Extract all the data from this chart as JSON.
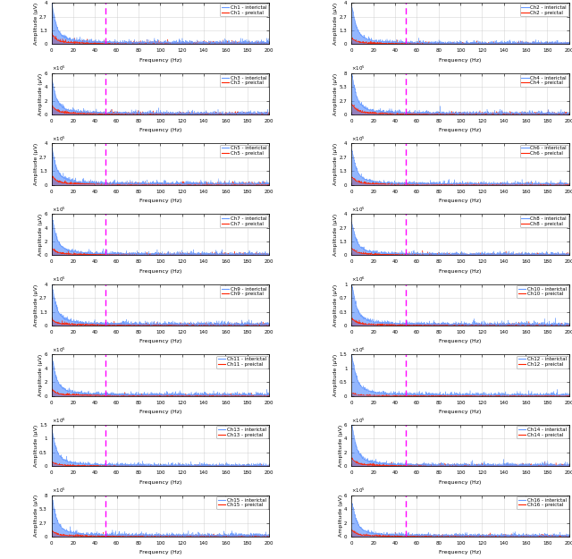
{
  "n_rows": 8,
  "n_cols": 2,
  "channels_left": [
    1,
    3,
    5,
    7,
    9,
    11,
    13,
    15
  ],
  "channels_right": [
    2,
    4,
    6,
    8,
    10,
    12,
    14,
    16
  ],
  "dashed_line_x": 50,
  "xlim": [
    0,
    200
  ],
  "xlabel": "Frequency (Hz)",
  "ylabel": "Amplitude (μV)",
  "interictal_color": "#6699FF",
  "preictal_color": "#FF2200",
  "dashed_color": "#FF00FF",
  "ylim_scales": {
    "1": [
      0,
      400000.0
    ],
    "2": [
      0,
      400000.0
    ],
    "3": [
      0,
      600000.0
    ],
    "4": [
      0,
      800000.0
    ],
    "5": [
      0,
      400000.0
    ],
    "6": [
      0,
      400000.0
    ],
    "7": [
      0,
      600000.0
    ],
    "8": [
      0,
      400000.0
    ],
    "9": [
      0,
      400000.0
    ],
    "10": [
      0,
      1000000.0
    ],
    "11": [
      0,
      600000.0
    ],
    "12": [
      0,
      1500000.0
    ],
    "13": [
      0,
      1500000.0
    ],
    "14": [
      0,
      600000.0
    ],
    "15": [
      0,
      800000.0
    ],
    "16": [
      0,
      600000.0
    ]
  },
  "channel_params": {
    "1": {
      "peak_i": 380000.0,
      "peak_p": 90000.0,
      "noise_i": 8000,
      "noise_p": 6000
    },
    "2": {
      "peak_i": 350000.0,
      "peak_p": 50000.0,
      "noise_i": 6000,
      "noise_p": 4000
    },
    "3": {
      "peak_i": 500000.0,
      "peak_p": 120000.0,
      "noise_i": 10000,
      "noise_p": 8000
    },
    "4": {
      "peak_i": 750000.0,
      "peak_p": 180000.0,
      "noise_i": 14000,
      "noise_p": 10000
    },
    "5": {
      "peak_i": 350000.0,
      "peak_p": 80000.0,
      "noise_i": 7000,
      "noise_p": 5000
    },
    "6": {
      "peak_i": 320000.0,
      "peak_p": 70000.0,
      "noise_i": 6000,
      "noise_p": 4000
    },
    "7": {
      "peak_i": 550000.0,
      "peak_p": 90000.0,
      "noise_i": 10000,
      "noise_p": 7000
    },
    "8": {
      "peak_i": 300000.0,
      "peak_p": 60000.0,
      "noise_i": 6000,
      "noise_p": 4000
    },
    "9": {
      "peak_i": 380000.0,
      "peak_p": 50000.0,
      "noise_i": 8000,
      "noise_p": 5000
    },
    "10": {
      "peak_i": 950000.0,
      "peak_p": 150000.0,
      "noise_i": 18000,
      "noise_p": 10000
    },
    "11": {
      "peak_i": 550000.0,
      "peak_p": 80000.0,
      "noise_i": 10000,
      "noise_p": 6000
    },
    "12": {
      "peak_i": 1400000.0,
      "peak_p": 100000.0,
      "noise_i": 25000,
      "noise_p": 8000
    },
    "13": {
      "peak_i": 1300000.0,
      "peak_p": 150000.0,
      "noise_i": 22000,
      "noise_p": 10000
    },
    "14": {
      "peak_i": 580000.0,
      "peak_p": 100000.0,
      "noise_i": 10000,
      "noise_p": 7000
    },
    "15": {
      "peak_i": 750000.0,
      "peak_p": 100000.0,
      "noise_i": 14000,
      "noise_p": 8000
    },
    "16": {
      "peak_i": 480000.0,
      "peak_p": 80000.0,
      "noise_i": 9000,
      "noise_p": 6000
    }
  },
  "xticks": [
    0,
    20,
    40,
    60,
    80,
    100,
    120,
    140,
    160,
    180,
    200
  ],
  "grid_color": "#cccccc",
  "background_color": "#ffffff",
  "legend_fontsize": 4.0,
  "tick_fontsize": 4.0,
  "label_fontsize": 4.5
}
